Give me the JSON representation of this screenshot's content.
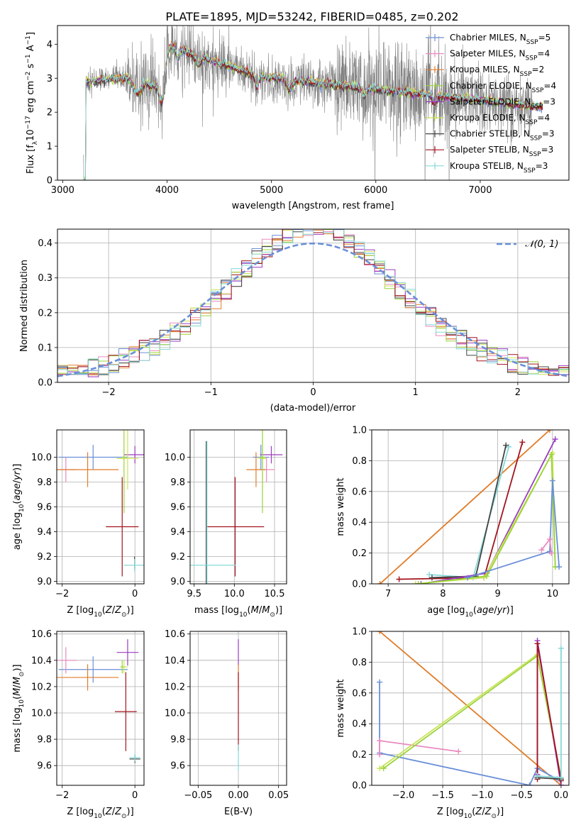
{
  "title": "PLATE=1895, MJD=53242, FIBERID=0485, z=0.202",
  "colors": {
    "Chabrier MILES": "#6a8fd8",
    "Salpeter MILES": "#e98abf",
    "Kroupa MILES": "#e07c2a",
    "Chabrier ELODIE": "#9ad43a",
    "Salpeter ELODIE": "#9a3cbf",
    "Kroupa ELODIE": "#cde35a",
    "Chabrier STELIB": "#444444",
    "Salpeter STELIB": "#a3141e",
    "Kroupa STELIB": "#86d8d8"
  },
  "chart_data": [
    {
      "id": "spectrum",
      "type": "line",
      "xlabel": "wavelength [Angstrom, rest frame]",
      "ylabel": "Flux [f_λ 10^-17 erg cm^-2 s^-1 A^-1]",
      "xlim": [
        2950,
        7850
      ],
      "ylim": [
        0,
        4.55
      ],
      "xticks": [
        "3000",
        "4000",
        "5000",
        "6000",
        "7000"
      ],
      "yticks": [
        "0",
        "1",
        "2",
        "3",
        "4"
      ],
      "data_color": "#808080",
      "data_range": [
        3200,
        7500
      ],
      "model_range": [
        3200,
        7600
      ],
      "legend_position": "top-right",
      "legend": [
        {
          "model": "Chabrier MILES",
          "nssp": "5"
        },
        {
          "model": "Salpeter MILES",
          "nssp": "4"
        },
        {
          "model": "Kroupa MILES",
          "nssp": "2"
        },
        {
          "model": "Chabrier ELODIE",
          "nssp": "4"
        },
        {
          "model": "Salpeter ELODIE",
          "nssp": "3"
        },
        {
          "model": "Kroupa ELODIE",
          "nssp": "4"
        },
        {
          "model": "Chabrier STELIB",
          "nssp": "3"
        },
        {
          "model": "Salpeter STELIB",
          "nssp": "3"
        },
        {
          "model": "Kroupa STELIB",
          "nssp": "3"
        }
      ]
    },
    {
      "id": "residuals",
      "type": "bar",
      "xlabel": "(data-model)/error",
      "ylabel": "Normed distribution",
      "xlim": [
        -2.5,
        2.5
      ],
      "ylim": [
        0,
        0.44
      ],
      "xticks": [
        "−2",
        "−1",
        "0",
        "1",
        "2"
      ],
      "yticks": [
        "0.0",
        "0.1",
        "0.2",
        "0.3",
        "0.4"
      ],
      "grid": true,
      "bin_width": 0.1,
      "gaussian_label": "𝒩(0, 1)",
      "gaussian_color": "#6a8fd8"
    },
    {
      "id": "age-vs-z",
      "type": "scatter",
      "xlabel": "Z [log10(Z/Z⊙)]",
      "ylabel": "age [log10(age/yr)]",
      "xlim": [
        -2.15,
        0.25
      ],
      "ylim": [
        8.98,
        10.22
      ],
      "xticks": [
        "−2",
        "0"
      ],
      "yticks": [
        "9.0",
        "9.2",
        "9.4",
        "9.6",
        "9.8",
        "10.0"
      ],
      "grid": true,
      "points": [
        {
          "model": "Chabrier MILES",
          "x": -1.15,
          "y": 10.0,
          "xerr": 0.95,
          "yerr": 0.1
        },
        {
          "model": "Salpeter MILES",
          "x": -1.9,
          "y": 9.9,
          "xerr": 0.3,
          "yerr": 0.1
        },
        {
          "model": "Kroupa MILES",
          "x": -1.3,
          "y": 9.9,
          "xerr": 0.85,
          "yerr": 0.14
        },
        {
          "model": "Salpeter ELODIE",
          "x": 0.0,
          "y": 10.02,
          "xerr": 0.3,
          "yerr": 0.07
        },
        {
          "model": "Kroupa ELODIE",
          "x": -0.2,
          "y": 9.99,
          "xerr": 0.3,
          "yerr": 0.25
        },
        {
          "model": "Chabrier ELODIE",
          "x": -0.3,
          "y": 10.0,
          "xerr": 0.05,
          "yerr": 0.45
        },
        {
          "model": "Salpeter STELIB",
          "x": -0.35,
          "y": 9.44,
          "xerr": 0.45,
          "yerr": 0.4
        },
        {
          "model": "Chabrier STELIB",
          "x": -0.01,
          "y": 9.15,
          "xerr": 0.01,
          "yerr": 0.05
        },
        {
          "model": "Kroupa STELIB",
          "x": -0.01,
          "y": 9.13,
          "xerr": 0.3,
          "yerr": 0.05
        }
      ]
    },
    {
      "id": "age-vs-mass",
      "type": "scatter",
      "xlabel": "mass [log10(M/M⊙)]",
      "ylabel": "",
      "xlim": [
        9.45,
        10.65
      ],
      "ylim": [
        8.98,
        10.22
      ],
      "xticks": [
        "9.5",
        "10.0",
        "10.5"
      ],
      "yticks": [
        "9.0",
        "9.2",
        "9.4",
        "9.6",
        "9.8",
        "10.0"
      ],
      "grid": true,
      "points": [
        {
          "model": "Chabrier MILES",
          "x": 10.33,
          "y": 10.0,
          "xerr": 0.1,
          "yerr": 0.1
        },
        {
          "model": "Salpeter MILES",
          "x": 10.4,
          "y": 9.9,
          "xerr": 0.1,
          "yerr": 0.1
        },
        {
          "model": "Kroupa MILES",
          "x": 10.27,
          "y": 9.9,
          "xerr": 0.12,
          "yerr": 0.14
        },
        {
          "model": "Salpeter ELODIE",
          "x": 10.46,
          "y": 10.02,
          "xerr": 0.14,
          "yerr": 0.07
        },
        {
          "model": "Kroupa ELODIE",
          "x": 10.35,
          "y": 9.99,
          "xerr": 0.05,
          "yerr": 0.25
        },
        {
          "model": "Chabrier ELODIE",
          "x": 10.35,
          "y": 10.0,
          "xerr": 0.04,
          "yerr": 0.45
        },
        {
          "model": "Salpeter STELIB",
          "x": 10.01,
          "y": 9.44,
          "xerr": 0.36,
          "yerr": 0.4
        },
        {
          "model": "Chabrier STELIB",
          "x": 9.65,
          "y": 9.13,
          "xerr": 0.01,
          "yerr": 1.0
        },
        {
          "model": "Kroupa STELIB",
          "x": 9.66,
          "y": 9.13,
          "xerr": 0.36,
          "yerr": 1.0
        }
      ]
    },
    {
      "id": "massweight-vs-age",
      "type": "line",
      "xlabel": "age [log10(age/yr)]",
      "ylabel": "mass weight",
      "xlim": [
        6.7,
        10.3
      ],
      "ylim": [
        0,
        1.0
      ],
      "xticks": [
        "7",
        "8",
        "9",
        "10"
      ],
      "yticks": [
        "0.0",
        "0.2",
        "0.4",
        "0.6",
        "0.8",
        "1.0"
      ],
      "grid": true,
      "series": [
        {
          "model": "Kroupa MILES",
          "x": [
            6.85,
            9.95
          ],
          "y": [
            0.0,
            1.0
          ]
        },
        {
          "model": "Salpeter STELIB",
          "x": [
            7.2,
            8.75,
            9.45
          ],
          "y": [
            0.03,
            0.04,
            0.92
          ]
        },
        {
          "model": "Kroupa STELIB",
          "x": [
            7.75,
            8.55,
            9.2
          ],
          "y": [
            0.06,
            0.04,
            0.89
          ]
        },
        {
          "model": "Chabrier STELIB",
          "x": [
            7.8,
            8.6,
            9.15
          ],
          "y": [
            0.04,
            0.05,
            0.9
          ]
        },
        {
          "model": "Salpeter ELODIE",
          "x": [
            7.6,
            8.8,
            10.05
          ],
          "y": [
            0.0,
            0.07,
            0.94
          ]
        },
        {
          "model": "Kroupa ELODIE",
          "x": [
            7.5,
            8.75,
            10.0,
            10.05
          ],
          "y": [
            0.0,
            0.04,
            0.85,
            0.11
          ]
        },
        {
          "model": "Chabrier ELODIE",
          "x": [
            7.55,
            8.8,
            9.98,
            10.05
          ],
          "y": [
            0.0,
            0.05,
            0.84,
            0.11
          ]
        },
        {
          "model": "Chabrier MILES",
          "x": [
            8.45,
            9.95,
            10.0,
            10.12
          ],
          "y": [
            0.04,
            0.21,
            0.67,
            0.11
          ]
        },
        {
          "model": "Salpeter MILES",
          "x": [
            9.8,
            9.95,
            9.98
          ],
          "y": [
            0.22,
            0.29,
            0.2
          ]
        }
      ]
    },
    {
      "id": "mass-vs-z",
      "type": "scatter",
      "xlabel": "Z [log10(Z/Z⊙)]",
      "ylabel": "mass [log10(M/M⊙)]",
      "xlim": [
        -2.15,
        0.25
      ],
      "ylim": [
        9.45,
        10.62
      ],
      "xticks": [
        "−2",
        "0"
      ],
      "yticks": [
        "9.6",
        "9.8",
        "10.0",
        "10.2",
        "10.4",
        "10.6"
      ],
      "grid": true,
      "points": [
        {
          "model": "Chabrier MILES",
          "x": -1.15,
          "y": 10.33,
          "xerr": 0.95,
          "yerr": 0.1
        },
        {
          "model": "Salpeter MILES",
          "x": -1.9,
          "y": 10.4,
          "xerr": 0.3,
          "yerr": 0.1
        },
        {
          "model": "Kroupa MILES",
          "x": -1.3,
          "y": 10.27,
          "xerr": 0.85,
          "yerr": 0.1
        },
        {
          "model": "Salpeter ELODIE",
          "x": -0.2,
          "y": 10.46,
          "xerr": 0.3,
          "yerr": 0.1
        },
        {
          "model": "Kroupa ELODIE",
          "x": -0.3,
          "y": 10.35,
          "xerr": 0.1,
          "yerr": 0.05
        },
        {
          "model": "Chabrier ELODIE",
          "x": -0.35,
          "y": 10.35,
          "xerr": 0.05,
          "yerr": 0.05
        },
        {
          "model": "Salpeter STELIB",
          "x": -0.25,
          "y": 10.01,
          "xerr": 0.3,
          "yerr": 0.3
        },
        {
          "model": "Chabrier STELIB",
          "x": 0.0,
          "y": 9.65,
          "xerr": 0.15,
          "yerr": 0.03
        },
        {
          "model": "Kroupa STELIB",
          "x": 0.0,
          "y": 9.66,
          "xerr": 0.15,
          "yerr": 0.03
        }
      ]
    },
    {
      "id": "mass-vs-ebv",
      "type": "scatter",
      "xlabel": "E(B-V)",
      "ylabel": "",
      "xlim": [
        -0.06,
        0.06
      ],
      "ylim": [
        9.45,
        10.62
      ],
      "xticks": [
        "−0.05",
        "0.00",
        "0.05"
      ],
      "yticks": [
        "9.6",
        "9.8",
        "10.0",
        "10.2",
        "10.4",
        "10.6"
      ],
      "grid": true,
      "points": [
        {
          "model": "Salpeter ELODIE",
          "x": 0.0,
          "y": 10.46,
          "xerr": 0.0,
          "yerr": 0.1
        },
        {
          "model": "Kroupa MILES",
          "x": 0.0,
          "y": 10.27,
          "xerr": 0.0,
          "yerr": 0.1
        },
        {
          "model": "Salpeter STELIB",
          "x": 0.0,
          "y": 10.01,
          "xerr": 0.0,
          "yerr": 0.3
        },
        {
          "model": "Kroupa STELIB",
          "x": 0.0,
          "y": 9.66,
          "xerr": 0.0,
          "yerr": 0.1
        }
      ]
    },
    {
      "id": "massweight-vs-z",
      "type": "line",
      "xlabel": "Z [log10(Z/Z⊙)]",
      "ylabel": "mass weight",
      "xlim": [
        -2.4,
        0.1
      ],
      "ylim": [
        0,
        1.0
      ],
      "xticks": [
        "−2.0",
        "−1.5",
        "−1.0",
        "−0.5",
        "0.0"
      ],
      "yticks": [
        "0.0",
        "0.2",
        "0.4",
        "0.6",
        "0.8",
        "1.0"
      ],
      "grid": true,
      "series": [
        {
          "model": "Kroupa MILES",
          "x": [
            -2.3,
            0.0
          ],
          "y": [
            1.0,
            0.0
          ]
        },
        {
          "model": "Chabrier MILES",
          "x": [
            -2.3,
            -2.3,
            -0.4,
            -0.3,
            -0.05
          ],
          "y": [
            0.67,
            0.21,
            0.0,
            0.11,
            0.04
          ]
        },
        {
          "model": "Salpeter MILES",
          "x": [
            -2.3,
            -2.3,
            -1.3
          ],
          "y": [
            0.2,
            0.29,
            0.22
          ]
        },
        {
          "model": "Kroupa ELODIE",
          "x": [
            -2.3,
            -0.3,
            0.0
          ],
          "y": [
            0.11,
            0.85,
            0.04
          ]
        },
        {
          "model": "Chabrier ELODIE",
          "x": [
            -2.25,
            -0.3,
            0.0
          ],
          "y": [
            0.11,
            0.84,
            0.05
          ]
        },
        {
          "model": "Salpeter ELODIE",
          "x": [
            -0.3,
            -0.3,
            0.0
          ],
          "y": [
            0.07,
            0.94,
            0.0
          ]
        },
        {
          "model": "Salpeter STELIB",
          "x": [
            -0.3,
            -0.3,
            0.0
          ],
          "y": [
            0.04,
            0.92,
            0.03
          ]
        },
        {
          "model": "Chabrier STELIB",
          "x": [
            -0.3,
            0.0
          ],
          "y": [
            0.05,
            0.04
          ]
        },
        {
          "model": "Kroupa STELIB",
          "x": [
            -0.3,
            0.0,
            0.0
          ],
          "y": [
            0.06,
            0.05,
            0.89
          ]
        }
      ]
    }
  ]
}
